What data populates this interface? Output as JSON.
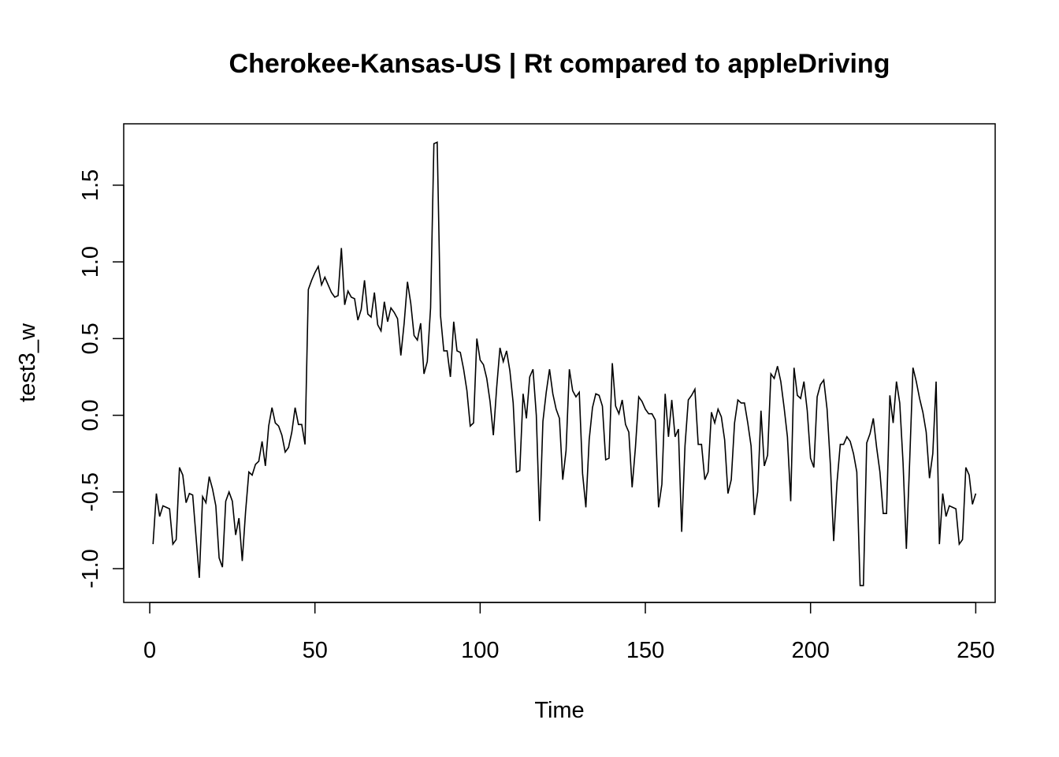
{
  "chart_data": {
    "type": "line",
    "title": "Cherokee-Kansas-US | Rt compared to appleDriving",
    "xlabel": "Time",
    "ylabel": "test3_w",
    "xlim": [
      -7.88,
      255.88
    ],
    "ylim": [
      -1.22,
      1.9
    ],
    "xticks": [
      {
        "value": 0,
        "label": "0"
      },
      {
        "value": 50,
        "label": "50"
      },
      {
        "value": 100,
        "label": "100"
      },
      {
        "value": 150,
        "label": "150"
      },
      {
        "value": 200,
        "label": "200"
      },
      {
        "value": 250,
        "label": "250"
      }
    ],
    "yticks": [
      {
        "value": -1.0,
        "label": "-1.0"
      },
      {
        "value": -0.5,
        "label": "-0.5"
      },
      {
        "value": 0.0,
        "label": "0.0"
      },
      {
        "value": 0.5,
        "label": "0.5"
      },
      {
        "value": 1.0,
        "label": "1.0"
      },
      {
        "value": 1.5,
        "label": "1.5"
      }
    ],
    "grid": false,
    "line_color": "#000000",
    "series": [
      {
        "x_start": 1,
        "values": [
          -0.84,
          -0.51,
          -0.66,
          -0.59,
          -0.6,
          -0.61,
          -0.84,
          -0.81,
          -0.34,
          -0.39,
          -0.57,
          -0.51,
          -0.52,
          -0.79,
          -1.06,
          -0.53,
          -0.57,
          -0.4,
          -0.48,
          -0.59,
          -0.93,
          -0.99,
          -0.56,
          -0.5,
          -0.56,
          -0.78,
          -0.67,
          -0.95,
          -0.63,
          -0.37,
          -0.39,
          -0.32,
          -0.3,
          -0.17,
          -0.33,
          -0.07,
          0.05,
          -0.05,
          -0.07,
          -0.13,
          -0.24,
          -0.21,
          -0.11,
          0.05,
          -0.06,
          -0.06,
          -0.19,
          0.82,
          0.88,
          0.93,
          0.97,
          0.85,
          0.9,
          0.85,
          0.8,
          0.77,
          0.78,
          1.09,
          0.72,
          0.81,
          0.77,
          0.76,
          0.62,
          0.69,
          0.88,
          0.66,
          0.64,
          0.8,
          0.59,
          0.55,
          0.74,
          0.61,
          0.7,
          0.67,
          0.63,
          0.39,
          0.6,
          0.87,
          0.73,
          0.52,
          0.49,
          0.6,
          0.27,
          0.35,
          0.7,
          1.77,
          1.78,
          0.65,
          0.42,
          0.42,
          0.25,
          0.61,
          0.42,
          0.41,
          0.3,
          0.16,
          -0.07,
          -0.05,
          0.5,
          0.36,
          0.33,
          0.24,
          0.09,
          -0.13,
          0.18,
          0.44,
          0.35,
          0.42,
          0.29,
          0.08,
          -0.37,
          -0.36,
          0.14,
          -0.02,
          0.25,
          0.3,
          0.0,
          -0.69,
          -0.04,
          0.15,
          0.3,
          0.14,
          0.04,
          -0.02,
          -0.42,
          -0.23,
          0.3,
          0.16,
          0.12,
          0.15,
          -0.38,
          -0.6,
          -0.16,
          0.05,
          0.14,
          0.13,
          0.06,
          -0.29,
          -0.28,
          0.34,
          0.06,
          0.01,
          0.1,
          -0.06,
          -0.11,
          -0.47,
          -0.21,
          0.12,
          0.09,
          0.04,
          0.01,
          0.01,
          -0.03,
          -0.6,
          -0.45,
          0.14,
          -0.14,
          0.1,
          -0.14,
          -0.09,
          -0.76,
          -0.2,
          0.1,
          0.13,
          0.17,
          -0.19,
          -0.19,
          -0.42,
          -0.37,
          0.02,
          -0.05,
          0.04,
          -0.01,
          -0.16,
          -0.51,
          -0.42,
          -0.05,
          0.1,
          0.08,
          0.08,
          -0.05,
          -0.2,
          -0.65,
          -0.5,
          0.03,
          -0.33,
          -0.26,
          0.27,
          0.24,
          0.32,
          0.22,
          0.05,
          -0.14,
          -0.56,
          0.31,
          0.13,
          0.11,
          0.22,
          0.03,
          -0.28,
          -0.34,
          0.12,
          0.2,
          0.23,
          0.04,
          -0.32,
          -0.82,
          -0.44,
          -0.19,
          -0.19,
          -0.14,
          -0.17,
          -0.25,
          -0.37,
          -1.11,
          -1.11,
          -0.18,
          -0.12,
          -0.02,
          -0.21,
          -0.37,
          -0.64,
          -0.64,
          0.13,
          -0.05,
          0.22,
          0.08,
          -0.31,
          -0.87,
          -0.3,
          0.31,
          0.22,
          0.11,
          0.02,
          -0.11,
          -0.41,
          -0.25,
          0.22,
          -0.84,
          -0.51,
          -0.66,
          -0.59,
          -0.6,
          -0.61,
          -0.84,
          -0.81,
          -0.34,
          -0.39,
          -0.58,
          -0.51
        ]
      }
    ]
  }
}
